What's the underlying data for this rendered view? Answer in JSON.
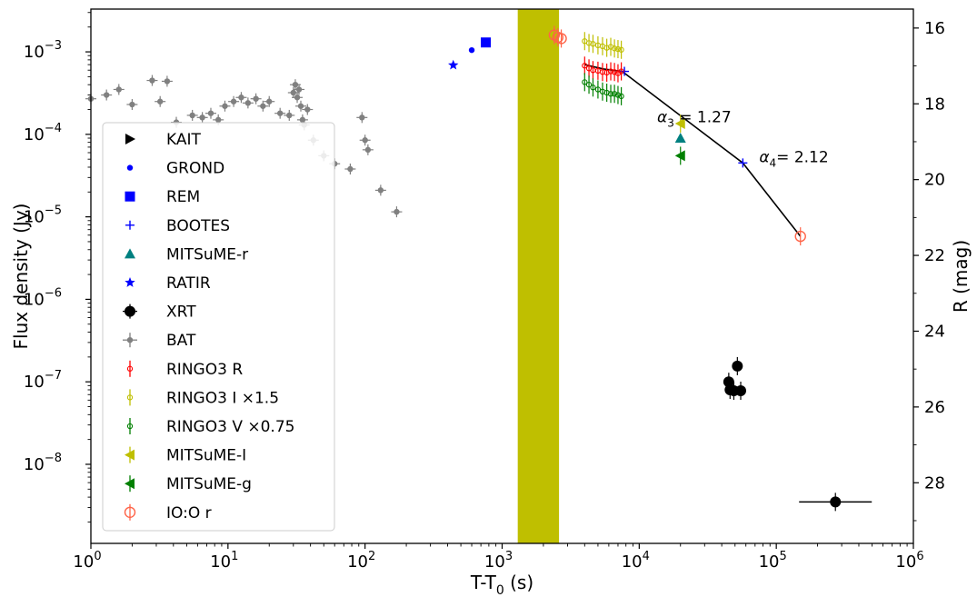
{
  "chart_data": {
    "type": "scatter",
    "xlabel": "T-T",
    "xlabel_sub": "0",
    "xlabel_unit": " (s)",
    "ylabel": "Flux density (Jy)",
    "y2label": "R (mag)",
    "xscale": "log",
    "yscale": "log",
    "xlim": [
      1,
      1000000
    ],
    "ylim": [
      1.1e-09,
      0.0033
    ],
    "y2lim": [
      15.5,
      29.6
    ],
    "x_ticks": [
      {
        "base": "10",
        "exp": "0",
        "value": 1
      },
      {
        "base": "10",
        "exp": "1",
        "value": 10
      },
      {
        "base": "10",
        "exp": "2",
        "value": 100
      },
      {
        "base": "10",
        "exp": "3",
        "value": 1000
      },
      {
        "base": "10",
        "exp": "4",
        "value": 10000
      },
      {
        "base": "10",
        "exp": "5",
        "value": 100000
      },
      {
        "base": "10",
        "exp": "6",
        "value": 1000000
      }
    ],
    "y_ticks": [
      {
        "base": "10",
        "exp": "−8",
        "value": 1e-08
      },
      {
        "base": "10",
        "exp": "−7",
        "value": 1e-07
      },
      {
        "base": "10",
        "exp": "−6",
        "value": 1e-06
      },
      {
        "base": "10",
        "exp": "−5",
        "value": 1e-05
      },
      {
        "base": "10",
        "exp": "−4",
        "value": 0.0001
      },
      {
        "base": "10",
        "exp": "−3",
        "value": 0.001
      }
    ],
    "y2_ticks": [
      "16",
      "18",
      "20",
      "22",
      "24",
      "26",
      "28"
    ],
    "shaded_band": {
      "x_start": 1300,
      "x_end": 2600,
      "color": "#bfbf00"
    },
    "annotations": [
      {
        "symbol": "α",
        "sub": "3",
        "text": " =  1.27",
        "x": 13500,
        "y": 0.00014
      },
      {
        "symbol": "α",
        "sub": "4",
        "text": "=  2.12",
        "x": 75000,
        "y": 4.6e-05
      }
    ],
    "fit_line": {
      "color": "#000000",
      "points": [
        [
          4000,
          0.0007
        ],
        [
          5500,
          0.00062
        ],
        [
          7500,
          0.00058
        ],
        [
          57000,
          4.5e-05
        ],
        [
          150000,
          5.8e-06
        ]
      ]
    },
    "legend": {
      "position": "left"
    },
    "series": [
      {
        "name": "KAIT",
        "marker": "triangle-right",
        "color": "#000000",
        "points": []
      },
      {
        "name": "GROND",
        "marker": "dot",
        "color": "#0000ff",
        "points": [
          [
            600,
            0.00105
          ]
        ]
      },
      {
        "name": "REM",
        "marker": "square",
        "color": "#0000ff",
        "points": [
          [
            760,
            0.0013
          ]
        ]
      },
      {
        "name": "BOOTES",
        "marker": "plus",
        "color": "#0000ff",
        "points": [
          [
            7800,
            0.00058
          ],
          [
            57000,
            4.5e-05
          ]
        ]
      },
      {
        "name": "MITSuME-r",
        "marker": "triangle-up",
        "color": "#008080",
        "points": [
          [
            20000,
            9e-05
          ]
        ]
      },
      {
        "name": "RATIR",
        "marker": "star",
        "color": "#0000ff",
        "points": [
          [
            440,
            0.00069
          ]
        ]
      },
      {
        "name": "XRT",
        "marker": "circle",
        "color": "#000000",
        "points": [
          [
            45000,
            1e-07
          ],
          [
            46000,
            8e-08
          ],
          [
            49000,
            7.8e-08
          ],
          [
            52000,
            1.55e-07
          ],
          [
            55000,
            7.8e-08
          ],
          [
            270000,
            3.5e-09
          ]
        ]
      },
      {
        "name": "BAT",
        "marker": "small-dot",
        "color": "#808080",
        "points": [
          [
            1.0,
            0.00027
          ],
          [
            1.3,
            0.0003
          ],
          [
            1.6,
            0.00035
          ],
          [
            2.0,
            0.00023
          ],
          [
            2.8,
            0.00045
          ],
          [
            3.2,
            0.00025
          ],
          [
            3.6,
            0.00044
          ],
          [
            4.2,
            0.00014
          ],
          [
            5.5,
            0.00017
          ],
          [
            6.5,
            0.00016
          ],
          [
            7.5,
            0.00018
          ],
          [
            8.5,
            0.00015
          ],
          [
            9.5,
            0.00022
          ],
          [
            11,
            0.00025
          ],
          [
            12.5,
            0.00028
          ],
          [
            14,
            0.00024
          ],
          [
            16,
            0.00027
          ],
          [
            18,
            0.00022
          ],
          [
            20,
            0.00025
          ],
          [
            24,
            0.00018
          ],
          [
            28,
            0.00017
          ],
          [
            30,
            0.00032
          ],
          [
            31,
            0.0004
          ],
          [
            32,
            0.00028
          ],
          [
            33,
            0.00035
          ],
          [
            34,
            0.00022
          ],
          [
            35,
            0.00015
          ],
          [
            36,
            0.00013
          ],
          [
            38,
            0.0002
          ],
          [
            42,
            8.5e-05
          ],
          [
            50,
            5.5e-05
          ],
          [
            60,
            4.4e-05
          ],
          [
            78,
            3.8e-05
          ],
          [
            95,
            0.00016
          ],
          [
            100,
            8.5e-05
          ],
          [
            105,
            6.5e-05
          ],
          [
            130,
            2.1e-05
          ],
          [
            170,
            1.15e-05
          ]
        ]
      },
      {
        "name": "RINGO3 R",
        "marker": "small-ring",
        "color": "#ff0000",
        "points": [
          [
            4000,
            0.00068
          ],
          [
            4300,
            0.00063
          ],
          [
            4600,
            0.0006
          ],
          [
            5000,
            0.00059
          ],
          [
            5400,
            0.00057
          ],
          [
            5800,
            0.00056
          ],
          [
            6200,
            0.00058
          ],
          [
            6600,
            0.00057
          ],
          [
            7000,
            0.00055
          ],
          [
            7400,
            0.00058
          ]
        ]
      },
      {
        "name": "RINGO3 I ×1.5",
        "marker": "small-ring",
        "color": "#bfbf00",
        "points": [
          [
            4000,
            0.00135
          ],
          [
            4300,
            0.00128
          ],
          [
            4600,
            0.00125
          ],
          [
            5000,
            0.0012
          ],
          [
            5400,
            0.00117
          ],
          [
            5800,
            0.00112
          ],
          [
            6200,
            0.00115
          ],
          [
            6600,
            0.0011
          ],
          [
            7000,
            0.00108
          ],
          [
            7400,
            0.00106
          ]
        ]
      },
      {
        "name": "RINGO3 V ×0.75",
        "marker": "small-ring",
        "color": "#008000",
        "points": [
          [
            4000,
            0.00043
          ],
          [
            4300,
            0.0004
          ],
          [
            4600,
            0.00037
          ],
          [
            5000,
            0.00035
          ],
          [
            5400,
            0.00033
          ],
          [
            5800,
            0.00032
          ],
          [
            6200,
            0.00031
          ],
          [
            6600,
            0.00031
          ],
          [
            7000,
            0.0003
          ],
          [
            7400,
            0.00029
          ]
        ]
      },
      {
        "name": "MITSuME-I",
        "marker": "triangle-left",
        "color": "#bfbf00",
        "points": [
          [
            20000,
            0.000135
          ]
        ]
      },
      {
        "name": "MITSuME-g",
        "marker": "triangle-left",
        "color": "#008000",
        "points": [
          [
            20000,
            5.5e-05
          ]
        ]
      },
      {
        "name": "IO:O r",
        "marker": "ring",
        "color": "#ff6347",
        "points": [
          [
            2400,
            0.0016
          ],
          [
            2550,
            0.0015
          ],
          [
            2700,
            0.00145
          ],
          [
            150000,
            5.8e-06
          ]
        ]
      }
    ]
  }
}
